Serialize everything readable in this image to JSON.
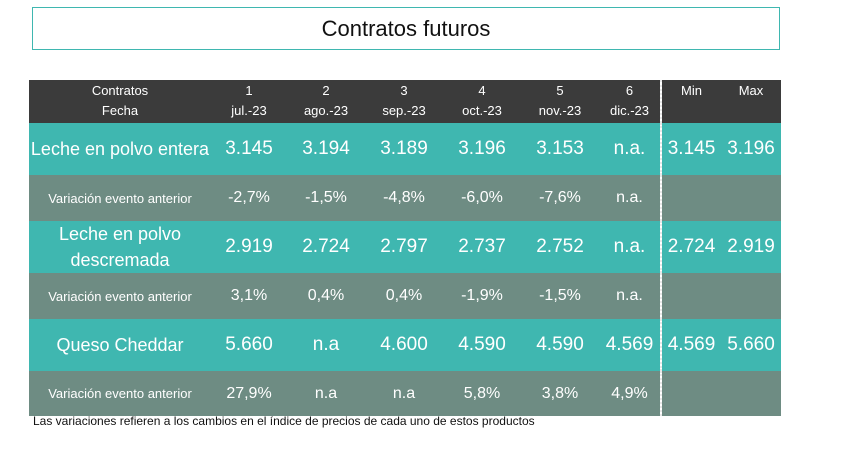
{
  "title": "Contratos futuros",
  "header": {
    "col0_line1": "Contratos",
    "col0_line2": "Fecha",
    "months": [
      {
        "num": "1",
        "label": "jul.-23"
      },
      {
        "num": "2",
        "label": "ago.-23"
      },
      {
        "num": "3",
        "label": "sep.-23"
      },
      {
        "num": "4",
        "label": "oct.-23"
      },
      {
        "num": "5",
        "label": "nov.-23"
      },
      {
        "num": "6",
        "label": "dic.-23"
      }
    ],
    "min_label": "Min",
    "max_label": "Max"
  },
  "rows": [
    {
      "label": "Leche en polvo entera",
      "values": [
        "3.145",
        "3.194",
        "3.189",
        "3.196",
        "3.153",
        "n.a."
      ],
      "min": "3.145",
      "max": "3.196"
    },
    {
      "label": "Variación evento anterior",
      "values": [
        "-2,7%",
        "-1,5%",
        "-4,8%",
        "-6,0%",
        "-7,6%",
        "n.a."
      ],
      "min": "",
      "max": ""
    },
    {
      "label": "Leche en polvo descremada",
      "values": [
        "2.919",
        "2.724",
        "2.797",
        "2.737",
        "2.752",
        "n.a."
      ],
      "min": "2.724",
      "max": "2.919"
    },
    {
      "label": "Variación evento anterior",
      "values": [
        "3,1%",
        "0,4%",
        "0,4%",
        "-1,9%",
        "-1,5%",
        "n.a."
      ],
      "min": "",
      "max": ""
    },
    {
      "label": "Queso Cheddar",
      "values": [
        "5.660",
        "n.a",
        "4.600",
        "4.590",
        "4.590",
        "4.569"
      ],
      "min": "4.569",
      "max": "5.660"
    },
    {
      "label": "Variación evento anterior",
      "values": [
        "27,9%",
        "n.a",
        "n.a",
        "5,8%",
        "3,8%",
        "4,9%"
      ],
      "min": "",
      "max": ""
    }
  ],
  "note": "Las variaciones refieren a los cambios en el índice de precios de cada uno de estos productos"
}
